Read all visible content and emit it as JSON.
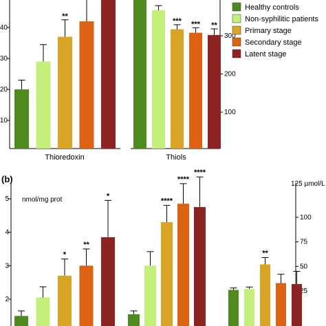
{
  "colors": {
    "healthy": "#4f8a1e",
    "non_syphilitic": "#c3f07a",
    "primary": "#d9a527",
    "secondary": "#dd6211",
    "latent": "#8e2323"
  },
  "legend": [
    {
      "label": "Healthy controls",
      "color": "#4f8a1e"
    },
    {
      "label": "Non-syphilitic patients",
      "color": "#c3f07a"
    },
    {
      "label": "Primary stage",
      "color": "#d9a527"
    },
    {
      "label": "Secondary stage",
      "color": "#dd6211"
    },
    {
      "label": "Latent stage",
      "color": "#8e2323"
    }
  ],
  "panel_b_label": "(b)",
  "chart_data": [
    {
      "type": "bar",
      "panel": "a-left",
      "xlabel": "Thioredoxin",
      "ylim": [
        10,
        50
      ],
      "yticks": [
        10,
        20,
        30,
        40
      ],
      "categories": [
        "Healthy controls",
        "Non-syphilitic patients",
        "Primary stage",
        "Secondary stage",
        "Latent stage"
      ],
      "values": [
        20,
        29,
        37,
        42,
        50
      ],
      "errors": [
        3,
        5.5,
        5.5,
        9,
        6
      ],
      "significance": [
        "",
        "",
        "**",
        "",
        ""
      ]
    },
    {
      "type": "bar",
      "panel": "a-right",
      "xlabel": "Thiols",
      "ylim": [
        0,
        420
      ],
      "yticks": [
        100,
        200,
        300
      ],
      "categories": [
        "Healthy controls",
        "Non-syphilitic patients",
        "Primary stage",
        "Secondary stage",
        "Latent stage"
      ],
      "values": [
        410,
        367,
        317,
        308,
        302
      ],
      "errors": [
        15,
        12,
        12,
        13,
        16
      ],
      "significance": [
        "",
        "",
        "***",
        "***",
        "**"
      ]
    },
    {
      "type": "bar",
      "panel": "b-left",
      "ylabel": "nmol/mg prot",
      "ylim": [
        1.5,
        5
      ],
      "yticks": [
        2,
        3,
        4,
        5
      ],
      "categories": [
        "Healthy controls",
        "Non-syphilitic patients",
        "Primary stage",
        "Secondary stage",
        "Latent stage"
      ],
      "values": [
        1.5,
        2.05,
        2.7,
        3.0,
        3.85
      ],
      "errors": [
        0.15,
        0.32,
        0.5,
        0.5,
        1.1
      ],
      "significance": [
        "",
        "",
        "*",
        "**",
        "*"
      ]
    },
    {
      "type": "bar",
      "panel": "b-middle",
      "categories": [
        "Healthy controls",
        "Non-syphilitic patients",
        "Primary stage",
        "Secondary stage",
        "Latent stage"
      ],
      "values": [
        1.55,
        3.0,
        4.3,
        4.85,
        4.75
      ],
      "errors": [
        0.1,
        0.42,
        0.5,
        0.6,
        0.9
      ],
      "significance": [
        "",
        "",
        "****",
        "****",
        "****"
      ]
    },
    {
      "type": "bar",
      "panel": "b-right",
      "ylabel": "125 µmol/L",
      "ylim": [
        25,
        125
      ],
      "yticks": [
        25,
        50,
        75,
        100
      ],
      "categories": [
        "Healthy controls",
        "Non-syphilitic patients",
        "Primary stage",
        "Secondary stage",
        "Latent stage"
      ],
      "values": [
        26,
        27,
        52,
        33,
        32
      ],
      "errors": [
        2,
        2,
        7,
        9,
        13
      ],
      "significance": [
        "",
        "",
        "**",
        "",
        ""
      ]
    }
  ]
}
